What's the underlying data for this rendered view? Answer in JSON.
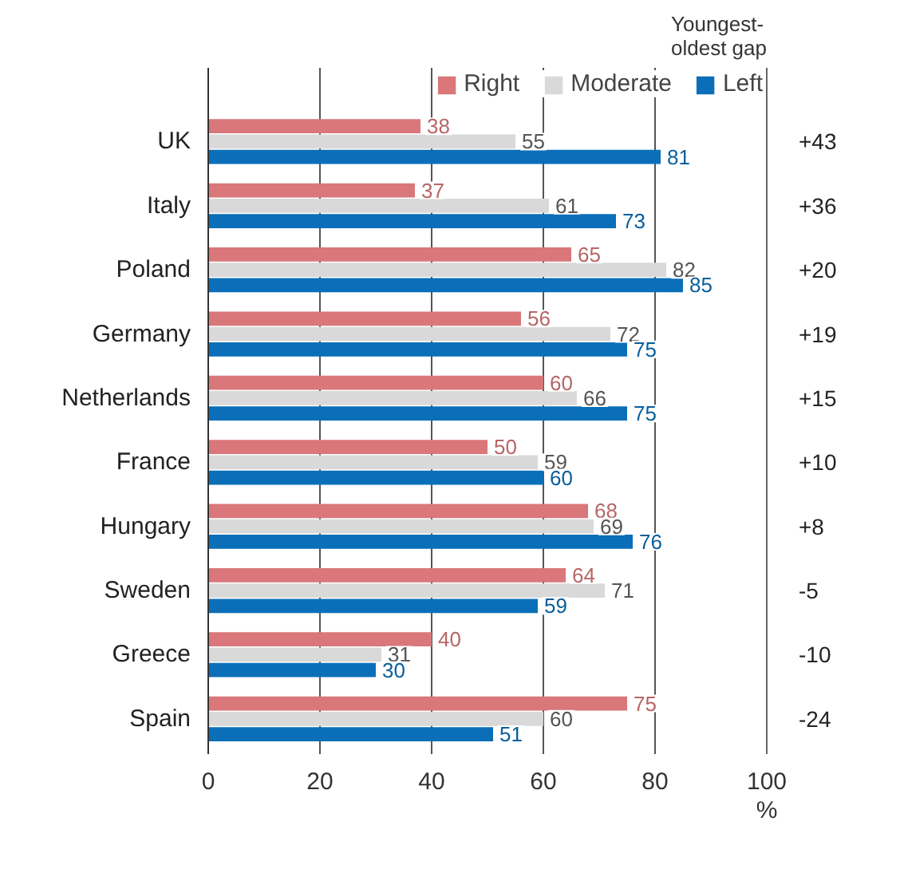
{
  "chart_data": {
    "type": "bar",
    "orientation": "horizontal",
    "categories": [
      "UK",
      "Italy",
      "Poland",
      "Germany",
      "Netherlands",
      "France",
      "Hungary",
      "Sweden",
      "Greece",
      "Spain"
    ],
    "series": [
      {
        "name": "Right",
        "color": "#d9777a",
        "values": [
          38,
          37,
          65,
          56,
          60,
          50,
          68,
          64,
          40,
          75
        ]
      },
      {
        "name": "Moderate",
        "color": "#d9d9d9",
        "values": [
          55,
          61,
          82,
          72,
          66,
          59,
          69,
          71,
          31,
          60
        ]
      },
      {
        "name": "Left",
        "color": "#0a6fb8",
        "values": [
          81,
          73,
          85,
          75,
          75,
          60,
          76,
          59,
          30,
          51
        ]
      }
    ],
    "xlim": [
      0,
      100
    ],
    "xticks": [
      0,
      20,
      40,
      60,
      80,
      100
    ],
    "xlabel": "%",
    "grid": "x",
    "legend": "top right",
    "data_labels": true,
    "annotations": [
      "Youngest-oldest gap",
      "+43",
      "+36",
      "+20",
      "+19",
      "+15",
      "+10",
      "+8",
      "-5",
      "-10",
      "-24"
    ]
  }
}
